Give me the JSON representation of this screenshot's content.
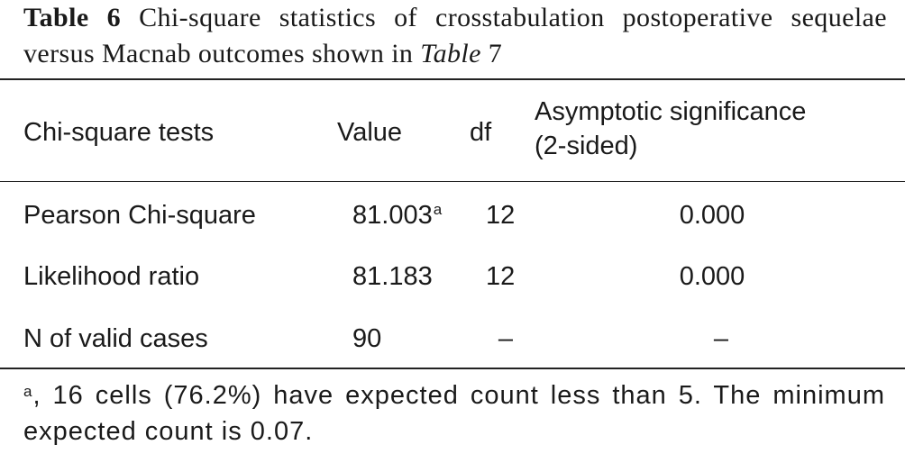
{
  "caption": {
    "label": "Table 6",
    "text_before": "Chi-square statistics of crosstabulation postoperative sequelae versus Macnab outcomes shown in",
    "ref_italic": "Table",
    "ref_number": "7"
  },
  "table": {
    "headers": {
      "col1": "Chi-square tests",
      "col2": "Value",
      "col3": "df",
      "col4_line1": "Asymptotic significance",
      "col4_line2": "(2-sided)"
    },
    "rows": [
      {
        "test": "Pearson Chi-square",
        "value": "81.003",
        "value_sup": "a",
        "df": "12",
        "sig": "0.000"
      },
      {
        "test": "Likelihood ratio",
        "value": "81.183",
        "value_sup": "",
        "df": "12",
        "sig": "0.000"
      },
      {
        "test": "N of valid cases",
        "value": "90",
        "value_sup": "",
        "df": "–",
        "sig": "–"
      }
    ]
  },
  "footnote": {
    "marker": "a",
    "text": ", 16 cells (76.2%) have expected count less than 5. The minimum expected count is 0.07."
  }
}
